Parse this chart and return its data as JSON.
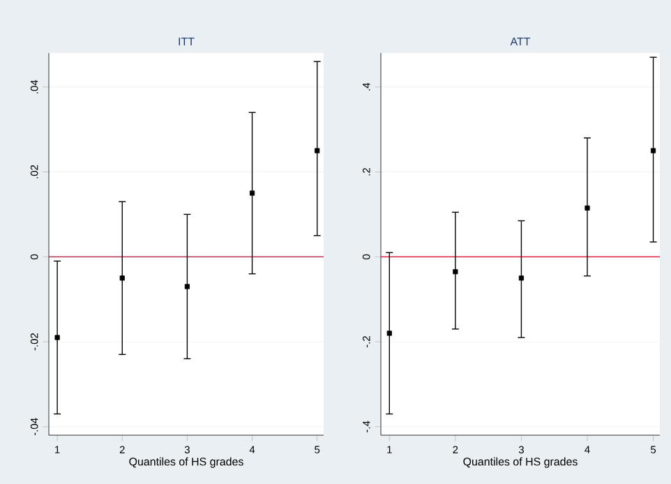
{
  "chart_data": [
    {
      "type": "scatter",
      "title": "ITT",
      "xlabel": "Quantiles of HS grades",
      "x": [
        1,
        2,
        3,
        4,
        5
      ],
      "values": [
        -0.019,
        -0.005,
        -0.007,
        0.015,
        0.025
      ],
      "errors": [
        [
          -0.037,
          -0.001
        ],
        [
          -0.023,
          0.013
        ],
        [
          -0.024,
          0.01
        ],
        [
          -0.004,
          0.034
        ],
        [
          0.005,
          0.046
        ]
      ],
      "color": "#000000",
      "marker": "square",
      "grid": "y",
      "xlim": [
        0.87,
        5.1
      ],
      "xticks": [
        1,
        2,
        3,
        4,
        5
      ],
      "ylim": [
        -0.042,
        0.048
      ],
      "yticks": [
        {
          "value": -0.04,
          "label": "-.04"
        },
        {
          "value": -0.02,
          "label": "-.02"
        },
        {
          "value": 0,
          "label": "0"
        },
        {
          "value": 0.02,
          "label": ".02"
        },
        {
          "value": 0.04,
          "label": ".04"
        }
      ],
      "ref_lines": [
        {
          "axis": "y",
          "value": 0,
          "color": "#b8334f"
        }
      ]
    },
    {
      "type": "scatter",
      "title": "ATT",
      "xlabel": "Quantiles of HS grades",
      "x": [
        1,
        2,
        3,
        4,
        5
      ],
      "values": [
        -0.18,
        -0.035,
        -0.05,
        0.115,
        0.25
      ],
      "errors": [
        [
          -0.37,
          0.01
        ],
        [
          -0.17,
          0.105
        ],
        [
          -0.19,
          0.085
        ],
        [
          -0.045,
          0.28
        ],
        [
          0.035,
          0.47
        ]
      ],
      "color": "#000000",
      "marker": "square",
      "grid": "y",
      "xlim": [
        0.87,
        5.1
      ],
      "xticks": [
        1,
        2,
        3,
        4,
        5
      ],
      "ylim": [
        -0.42,
        0.48
      ],
      "yticks": [
        {
          "value": -0.4,
          "label": "-.4"
        },
        {
          "value": -0.2,
          "label": "-.2"
        },
        {
          "value": 0,
          "label": "0"
        },
        {
          "value": 0.2,
          "label": ".2"
        },
        {
          "value": 0.4,
          "label": ".4"
        }
      ],
      "ref_lines": [
        {
          "axis": "y",
          "value": 0,
          "color": "#e0203c"
        }
      ]
    }
  ]
}
